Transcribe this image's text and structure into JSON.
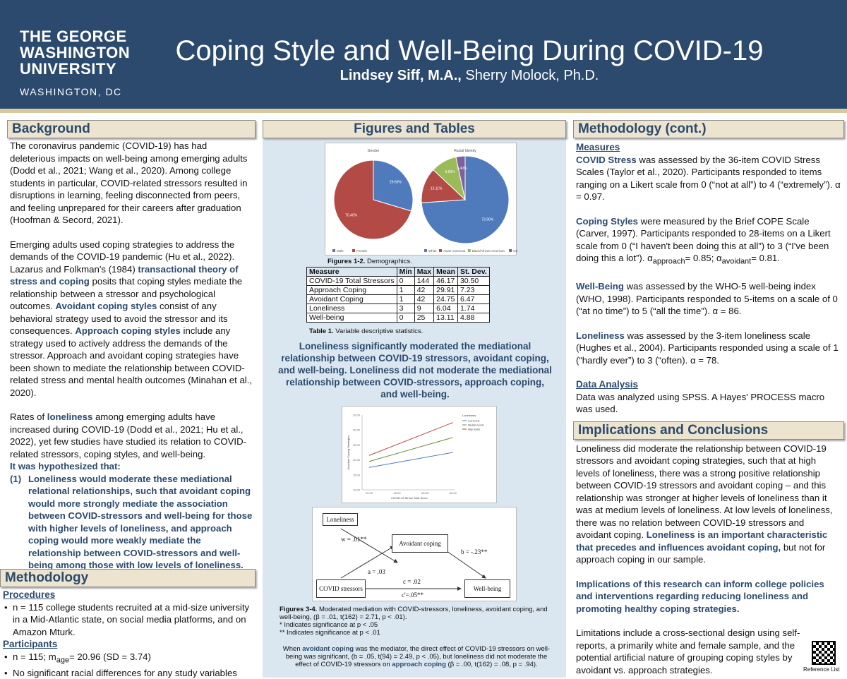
{
  "header": {
    "logo_line1": "THE GEORGE",
    "logo_line2": "WASHINGTON",
    "logo_line3": "UNIVERSITY",
    "logo_sub": "WASHINGTON, DC",
    "title": "Coping Style and Well-Being During COVID-19",
    "author1": "Lindsey Siff, M.A.,",
    "author2": "Sherry Molock, Ph.D."
  },
  "background": {
    "heading": "Background",
    "p1": "The coronavirus pandemic (COVID-19) has had deleterious impacts on well-being among emerging adults (Dodd et al., 2021; Wang et al., 2020). Among college students in particular, COVID-related stressors resulted in disruptions in learning, feeling disconnected from peers, and feeling unprepared for their careers after graduation (Hoofman & Secord, 2021).",
    "p2a": "Emerging adults used coping strategies to address the demands of the COVID-19 pandemic (Hu et al., 2022). Lazarus and Folkman's (1984) ",
    "p2b": "transactional theory of stress and coping",
    "p2c": " posits that coping styles mediate the relationship between a stressor and psychological outcomes. ",
    "p2d": "Avoidant coping styles",
    "p2e": " consist of any behavioral strategy used to avoid the stressor and its consequences. ",
    "p2f": "Approach coping styles",
    "p2g": " include any strategy used to actively address the demands of the stressor. Approach and avoidant coping strategies have been shown to mediate the relationship between COVID-related stress and mental health outcomes (Minahan et al., 2020).",
    "p3a": "Rates of ",
    "p3b": "loneliness",
    "p3c": " among emerging adults have increased during COVID-19 (Dodd et al., 2021; Hu et al., 2022), yet few studies have studied its relation to COVID-related stressors, coping styles, and well-being.",
    "p3d": "It was hypothesized that:",
    "hyp_num": "(1)",
    "hyp": "Loneliness would moderate these mediational relational relationships, such that avoidant coping would more strongly mediate the association between COVID-stressors and well-being for those with higher levels of loneliness, and approach coping would more weakly mediate the relationship between COVID-stressors and well-being among those with low levels of loneliness."
  },
  "methodology": {
    "heading": "Methodology",
    "procedures": "Procedures",
    "proc_item": "n = 115 college students recruited at a mid-size university in a Mid-Atlantic state, on social media platforms, and on Amazon Mturk.",
    "participants": "Participants",
    "part1": "n = 115; m",
    "part1_sub": "age",
    "part1b": "= 20.96 (SD = 3.74)",
    "part2": "No significant racial differences for any study variables"
  },
  "figures": {
    "heading": "Figures and Tables",
    "pie1_title": "Gender",
    "pie1_values": [
      29.6,
      70.4
    ],
    "pie1_labels": [
      "29.60%",
      "70.40%"
    ],
    "pie1_legend": [
      "Male",
      "Female"
    ],
    "pie2_title": "Racial Identity",
    "pie2_values": [
      73.9,
      13.11,
      9.6,
      3.4
    ],
    "pie2_labels": [
      "73.90%",
      "13.11%",
      "9.60%",
      "3.40%"
    ],
    "pie2_legend": [
      "White",
      "Asian American",
      "Black/African American",
      "Other"
    ],
    "fig12_caption_b": "Figures 1-2.",
    "fig12_caption": " Demographics.",
    "table_headers": [
      "Measure",
      "Min",
      "Max",
      "Mean",
      "St. Dev."
    ],
    "table_rows": [
      [
        "COVID-19 Total Stressors",
        "0",
        "144",
        "46.17",
        "30.50"
      ],
      [
        "Approach Coping",
        "1",
        "42",
        "29.91",
        "7.23"
      ],
      [
        "Avoidant Coping",
        "1",
        "42",
        "24.75",
        "6.47"
      ],
      [
        "Loneliness",
        "3",
        "9",
        "6.04",
        "1.74"
      ],
      [
        "Well-being",
        "0",
        "25",
        "13.11",
        "4.88"
      ]
    ],
    "table_caption_b": "Table 1.",
    "table_caption": " Variable descriptive statistics.",
    "finding": "Loneliness significantly moderated the mediational relationship between COVID-19 stressors, avoidant coping, and well-being. Loneliness did not moderate the mediational relationship between COVID-stressors, approach coping, and well-being.",
    "line_legend_title": "Loneliness",
    "line_legend": [
      "Low levels",
      "Medium levels",
      "High levels"
    ],
    "line_xlabel": "COVID-19 Stress Total Score",
    "line_ylabel": "Avoidant Coping Strategies",
    "med_loneliness": "Loneliness",
    "med_avoidant": "Avoidant coping",
    "med_covid": "COVID stressors",
    "med_wellbeing": "Well-being",
    "med_w": "w = .01**",
    "med_a": "a = .03",
    "med_b": "b = -.23**",
    "med_c": "c = .02",
    "med_c2": "c'=.05**",
    "fig34_b": "Figures 3-4.",
    "fig34": " Moderated mediation with COVID-stressors, loneliness, avoidant coping, and well-being, (β = .01, t(162) = 2.71, p < .01).",
    "sig1": "* Indicates significance at p < .05",
    "sig2": "** Indicates significance at p < .01",
    "note_a": "When ",
    "note_b": "avoidant coping",
    "note_c": " was the mediator, the direct effect of COVID-19 stressors on well-being was significant, (b = .05, t(94) = 2.49, p < .05), but loneliness did not moderate the effect of COVID-19 stressors on ",
    "note_d": "approach coping",
    "note_e": " (β = .00, t(162) = .08, p = .94)."
  },
  "chart_data": [
    {
      "type": "pie",
      "title": "Gender",
      "categories": [
        "Male",
        "Female"
      ],
      "values": [
        29.6,
        70.4
      ]
    },
    {
      "type": "pie",
      "title": "Racial Identity",
      "categories": [
        "White",
        "Asian American",
        "Black/African American",
        "Other"
      ],
      "values": [
        73.9,
        13.11,
        9.6,
        3.4
      ]
    },
    {
      "type": "line",
      "xlabel": "COVID-19 Stress Total Score",
      "ylabel": "Avoidant Coping Strategies",
      "legend_title": "Loneliness",
      "series": [
        {
          "name": "Low levels",
          "values": [
            17.5,
            22.5
          ]
        },
        {
          "name": "Medium levels",
          "values": [
            19.5,
            27.5
          ]
        },
        {
          "name": "High levels",
          "values": [
            21.5,
            32.5
          ]
        }
      ],
      "x": [
        20,
        80
      ],
      "ylim": [
        10,
        35
      ],
      "yticks": [
        "10.00",
        "15.00",
        "20.00",
        "25.00",
        "30.00",
        "35.00"
      ],
      "xticks": [
        "20.00",
        "40.00",
        "60.00",
        "80.00"
      ]
    }
  ],
  "methodology_cont": {
    "heading": "Methodology (cont.)",
    "measures": "Measures",
    "m1a": "COVID Stress",
    "m1b": " was assessed by the 36-item COVID Stress Scales (Taylor et al., 2020). Participants responded to items ranging on a Likert scale from 0 (“not at all”) to 4 (“extremely”). α = 0.97.",
    "m2a": "Coping Styles",
    "m2b": " were measured by the Brief COPE Scale (Carver, 1997). Participants responded to 28-items on a Likert scale from 0 (“I haven't been doing this at all”) to 3 (“I've been doing this a lot”). α",
    "m2sub1": "approach",
    "m2c": "= 0.85; α",
    "m2sub2": "avoidant",
    "m2d": "= 0.81.",
    "m3a": "Well-Being",
    "m3b": " was assessed by the WHO-5 well-being index (WHO, 1998). Participants responded to 5-items on a scale of 0 (“at no time”) to 5 (“all the time”). α = 86.",
    "m4a": "Loneliness",
    "m4b": " was assessed by the 3-item loneliness scale (Hughes et al., 2004). Participants responded using a scale of 1 (“hardly ever”) to 3 (“often). α = 78.",
    "data_analysis": "Data Analysis",
    "da_text": "Data was analyzed using SPSS. A Hayes' PROCESS macro was used."
  },
  "implications": {
    "heading": "Implications and Conclusions",
    "p1a": "Loneliness did moderate the relationship between COVID-19 stressors and avoidant coping strategies, such that at high levels of loneliness, there was a strong positive relationship between COVID-19 stressors and avoidant coping – and this relationship was stronger at higher levels of loneliness than it was at medium levels of loneliness. At low levels of loneliness, there was no relation between COVID-19 stressors and avoidant coping. ",
    "p1b": "Loneliness is an important characteristic that precedes and influences avoidant coping,",
    "p1c": " but not for approach coping in our sample.",
    "p2": "Implications of this research can inform college policies and interventions regarding reducing loneliness and promoting healthy coping strategies.",
    "p3": "Limitations include a cross-sectional design using self-reports, a primarily white and female sample, and the potential artificial nature of grouping coping styles by avoidant vs. approach strategies.",
    "ref": "Reference List"
  },
  "colors": {
    "navy": "#2b4a6d",
    "tan": "#ece4cf",
    "panel": "#dae6f0",
    "pie_blue": "#4f7bbd",
    "pie_red": "#b34a45",
    "pie_green": "#9bbb59",
    "pie_purple": "#7e5fa0"
  }
}
